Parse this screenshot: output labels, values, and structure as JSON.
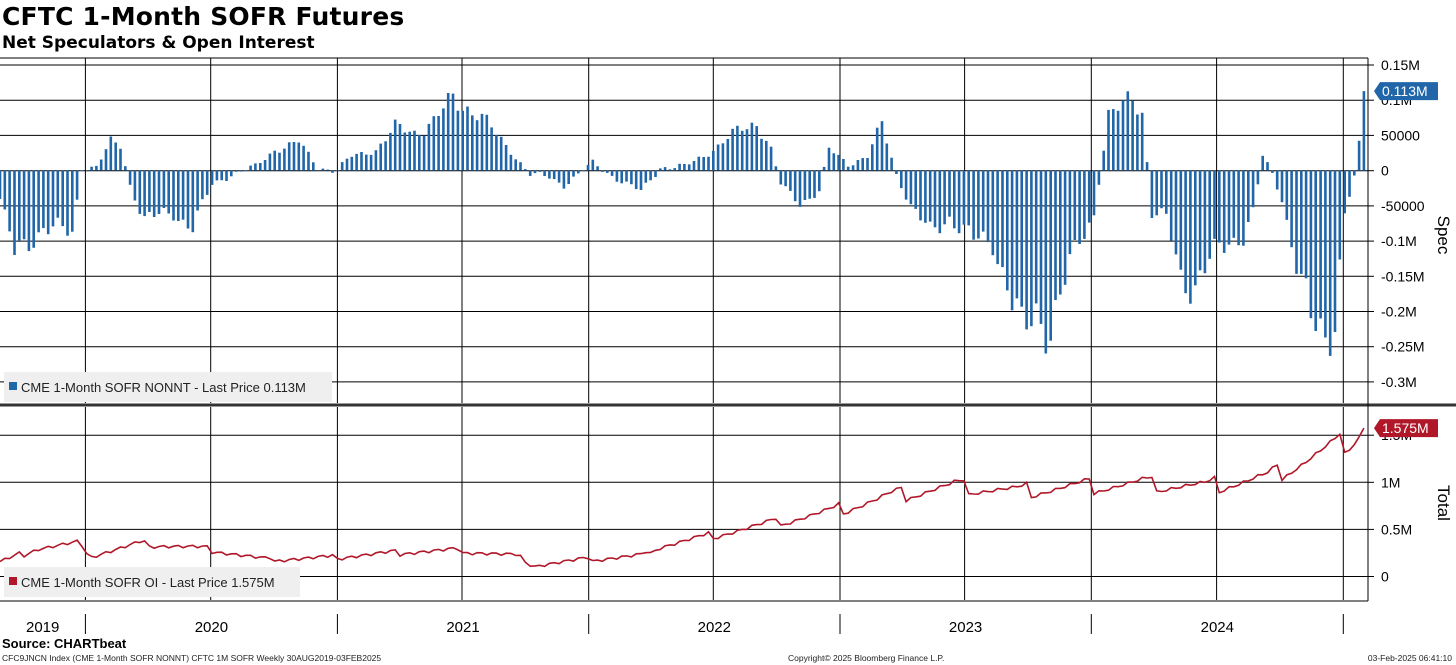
{
  "header": {
    "title": "CFTC 1-Month SOFR Futures",
    "subtitle": "Net Speculators & Open Interest"
  },
  "colors": {
    "spec": "#2166a8",
    "total": "#b0182a",
    "grid": "#000000"
  },
  "chart_data": [
    {
      "type": "bar",
      "panel": "top",
      "legend": "CME 1-Month SOFR NONNT - Last Price 0.113M",
      "ylabel": "Spec",
      "ylim": [
        -0.33,
        0.16
      ],
      "unit": "millions",
      "yticks": [
        0.15,
        0.1,
        0.05,
        0,
        -0.05,
        -0.1,
        -0.15,
        -0.2,
        -0.25,
        -0.3
      ],
      "ytick_labels": [
        "0.15M",
        "0.1M",
        "50000",
        "0",
        "-50000",
        "-0.1M",
        "-0.15M",
        "-0.2M",
        "-0.25M",
        "-0.3M"
      ],
      "last_value_label": "0.113M",
      "x_start": "2019-08-30",
      "x_end": "2025-02-03",
      "frequency": "weekly",
      "anchor_points": [
        [
          "2019-08-30",
          -0.04
        ],
        [
          "2019-09-20",
          -0.12
        ],
        [
          "2019-11-01",
          -0.08
        ],
        [
          "2019-12-13",
          -0.09
        ],
        [
          "2019-12-27",
          0.005
        ],
        [
          "2020-01-17",
          0.005
        ],
        [
          "2020-02-07",
          0.04
        ],
        [
          "2020-02-21",
          0.035
        ],
        [
          "2020-03-06",
          -0.02
        ],
        [
          "2020-03-27",
          -0.07
        ],
        [
          "2020-05-08",
          -0.06
        ],
        [
          "2020-06-05",
          -0.08
        ],
        [
          "2020-07-03",
          -0.02
        ],
        [
          "2020-07-31",
          -0.005
        ],
        [
          "2020-09-04",
          0.005
        ],
        [
          "2020-10-02",
          0.03
        ],
        [
          "2020-11-06",
          0.04
        ],
        [
          "2020-12-04",
          0.005
        ],
        [
          "2020-12-31",
          0.0
        ],
        [
          "2021-01-22",
          0.02
        ],
        [
          "2021-02-26",
          0.03
        ],
        [
          "2021-03-26",
          0.06
        ],
        [
          "2021-04-23",
          0.055
        ],
        [
          "2021-05-21",
          0.07
        ],
        [
          "2021-06-18",
          0.1
        ],
        [
          "2021-07-23",
          0.085
        ],
        [
          "2021-08-20",
          0.05
        ],
        [
          "2021-09-17",
          0.02
        ],
        [
          "2021-10-08",
          -0.005
        ],
        [
          "2021-11-05",
          -0.01
        ],
        [
          "2021-11-26",
          -0.02
        ],
        [
          "2022-01-07",
          0.01
        ],
        [
          "2022-02-18",
          -0.015
        ],
        [
          "2022-03-18",
          -0.03
        ],
        [
          "2022-04-15",
          0.005
        ],
        [
          "2022-05-20",
          0.005
        ],
        [
          "2022-07-01",
          0.03
        ],
        [
          "2022-08-12",
          0.06
        ],
        [
          "2022-09-02",
          0.07
        ],
        [
          "2022-09-23",
          0.03
        ],
        [
          "2022-10-07",
          -0.02
        ],
        [
          "2022-11-04",
          -0.045
        ],
        [
          "2022-12-02",
          -0.03
        ],
        [
          "2022-12-16",
          0.03
        ],
        [
          "2023-01-13",
          0.01
        ],
        [
          "2023-02-10",
          0.02
        ],
        [
          "2023-03-03",
          0.065
        ],
        [
          "2023-03-24",
          -0.005
        ],
        [
          "2023-04-14",
          -0.05
        ],
        [
          "2023-05-12",
          -0.09
        ],
        [
          "2023-06-09",
          -0.065
        ],
        [
          "2023-07-14",
          -0.1
        ],
        [
          "2023-08-11",
          -0.1
        ],
        [
          "2023-09-01",
          -0.16
        ],
        [
          "2023-09-22",
          -0.24
        ],
        [
          "2023-10-13",
          -0.2
        ],
        [
          "2023-11-03",
          -0.22
        ],
        [
          "2023-11-24",
          -0.16
        ],
        [
          "2023-12-15",
          -0.1
        ],
        [
          "2024-01-05",
          -0.06
        ],
        [
          "2024-01-26",
          0.075
        ],
        [
          "2024-02-16",
          0.09
        ],
        [
          "2024-03-01",
          0.11
        ],
        [
          "2024-03-15",
          0.085
        ],
        [
          "2024-03-29",
          -0.06
        ],
        [
          "2024-04-19",
          -0.07
        ],
        [
          "2024-05-10",
          -0.15
        ],
        [
          "2024-05-31",
          -0.16
        ],
        [
          "2024-06-21",
          -0.13
        ],
        [
          "2024-07-19",
          -0.1
        ],
        [
          "2024-08-09",
          -0.09
        ],
        [
          "2024-08-23",
          -0.06
        ],
        [
          "2024-09-06",
          0.02
        ],
        [
          "2024-09-20",
          -0.005
        ],
        [
          "2024-10-04",
          -0.04
        ],
        [
          "2024-10-25",
          -0.13
        ],
        [
          "2024-11-15",
          -0.22
        ],
        [
          "2024-12-06",
          -0.24
        ],
        [
          "2024-12-20",
          -0.2
        ],
        [
          "2025-01-03",
          -0.06
        ],
        [
          "2025-01-17",
          -0.01
        ],
        [
          "2025-01-24",
          0.035
        ],
        [
          "2025-01-31",
          0.113
        ]
      ]
    },
    {
      "type": "line",
      "panel": "bottom",
      "legend": "CME 1-Month SOFR OI - Last Price 1.575M",
      "ylabel": "Total",
      "ylim": [
        -0.25,
        1.8
      ],
      "unit": "millions",
      "yticks": [
        1.5,
        1.0,
        0.5,
        0
      ],
      "ytick_labels": [
        "1.5M",
        "1M",
        "0.5M",
        "0"
      ],
      "last_value_label": "1.575M",
      "x_start": "2019-08-30",
      "x_end": "2025-02-03",
      "frequency": "weekly",
      "anchor_points": [
        [
          "2019-08-30",
          0.15
        ],
        [
          "2019-10-25",
          0.3
        ],
        [
          "2019-12-20",
          0.35
        ],
        [
          "2020-01-10",
          0.22
        ],
        [
          "2020-03-20",
          0.35
        ],
        [
          "2020-06-19",
          0.3
        ],
        [
          "2020-09-18",
          0.18
        ],
        [
          "2020-12-18",
          0.2
        ],
        [
          "2021-03-19",
          0.25
        ],
        [
          "2021-06-18",
          0.28
        ],
        [
          "2021-09-17",
          0.22
        ],
        [
          "2021-10-15",
          0.12
        ],
        [
          "2021-12-17",
          0.17
        ],
        [
          "2022-03-18",
          0.22
        ],
        [
          "2022-04-15",
          0.32
        ],
        [
          "2022-06-17",
          0.42
        ],
        [
          "2022-09-16",
          0.55
        ],
        [
          "2022-12-16",
          0.68
        ],
        [
          "2023-03-17",
          0.85
        ],
        [
          "2023-06-16",
          0.95
        ],
        [
          "2023-09-15",
          0.9
        ],
        [
          "2023-12-15",
          0.95
        ],
        [
          "2024-03-15",
          0.98
        ],
        [
          "2024-06-14",
          0.95
        ],
        [
          "2024-09-13",
          1.05
        ],
        [
          "2024-12-13",
          1.35
        ],
        [
          "2025-01-10",
          1.45
        ],
        [
          "2025-01-31",
          1.575
        ]
      ]
    }
  ],
  "x_axis": {
    "years": [
      "2019",
      "2020",
      "2021",
      "2022",
      "2023",
      "2024"
    ]
  },
  "footer": {
    "source": "Source: CHARTbeat",
    "left": "CFC9JNCN Index (CME 1-Month SOFR NONNT) CFTC 1M SOFR  Weekly 30AUG2019-03FEB2025",
    "center": "Copyright© 2025 Bloomberg Finance L.P.",
    "right": "03-Feb-2025 06:41:10"
  }
}
